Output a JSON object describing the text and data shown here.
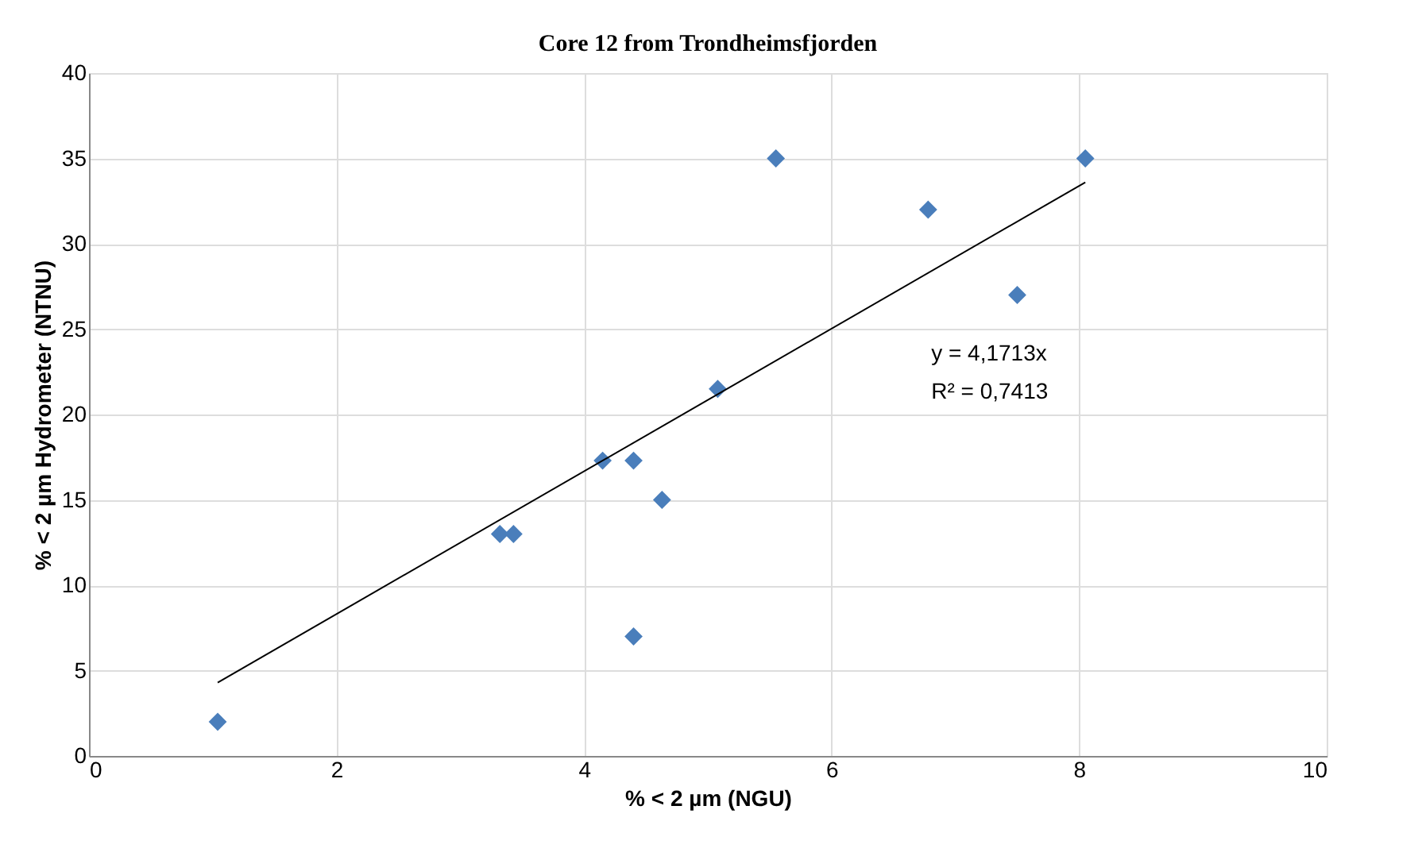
{
  "chart_data": {
    "type": "scatter",
    "title": "Core 12 from Trondheimsfjorden",
    "xlabel": "% < 2 µm (NGU)",
    "ylabel": "% < 2 µm Hydrometer  (NTNU)",
    "series": [
      {
        "type": "scatter",
        "color": "#4a7ebb",
        "marker": "diamond",
        "x": [
          1.04,
          3.32,
          3.43,
          4.15,
          4.4,
          4.63,
          4.4,
          5.08,
          5.55,
          6.78,
          7.5,
          8.05
        ],
        "values": [
          2,
          13,
          13,
          17.3,
          17.3,
          15,
          7,
          21.5,
          35,
          32,
          27,
          35
        ]
      },
      {
        "type": "line",
        "color": "#000000",
        "x": [
          1.04,
          8.05
        ],
        "values": [
          4.3,
          33.6
        ]
      }
    ],
    "xlim": [
      0,
      10
    ],
    "xticks": [
      0,
      2,
      4,
      6,
      8,
      10
    ],
    "ylim": [
      0,
      40
    ],
    "yticks": [
      0,
      5,
      10,
      15,
      20,
      25,
      30,
      35,
      40
    ],
    "grid": true,
    "annotations": [
      "y = 4,1713x",
      "R² = 0,7413"
    ]
  }
}
